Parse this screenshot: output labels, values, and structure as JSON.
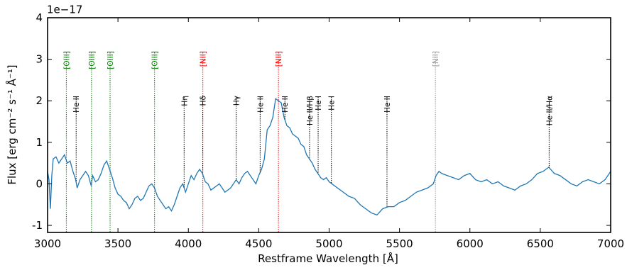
{
  "chart_data": {
    "type": "line",
    "offset_label": "1e−17",
    "xlabel": "Restframe Wavelength [Å]",
    "ylabel": "Flux [erg cm⁻² s⁻¹ Å⁻¹]",
    "xlim": [
      3000,
      7000
    ],
    "ylim": [
      -1.17,
      4
    ],
    "xticks": [
      3000,
      3500,
      4000,
      4500,
      5000,
      5500,
      6000,
      6500,
      7000
    ],
    "yticks": [
      -1,
      0,
      1,
      2,
      3,
      4
    ],
    "color": "#1f77b4",
    "x": [
      3000,
      3010,
      3020,
      3030,
      3040,
      3060,
      3080,
      3100,
      3120,
      3140,
      3160,
      3180,
      3200,
      3210,
      3230,
      3250,
      3270,
      3290,
      3310,
      3320,
      3340,
      3360,
      3380,
      3400,
      3420,
      3440,
      3460,
      3480,
      3500,
      3520,
      3540,
      3560,
      3580,
      3600,
      3620,
      3640,
      3660,
      3680,
      3700,
      3720,
      3740,
      3760,
      3780,
      3800,
      3820,
      3840,
      3860,
      3880,
      3900,
      3920,
      3940,
      3960,
      3980,
      4000,
      4020,
      4040,
      4060,
      4080,
      4100,
      4120,
      4140,
      4160,
      4180,
      4200,
      4220,
      4240,
      4260,
      4280,
      4300,
      4320,
      4340,
      4360,
      4380,
      4400,
      4420,
      4440,
      4460,
      4480,
      4500,
      4520,
      4540,
      4560,
      4580,
      4600,
      4620,
      4640,
      4660,
      4680,
      4700,
      4720,
      4740,
      4760,
      4780,
      4800,
      4820,
      4840,
      4860,
      4880,
      4900,
      4920,
      4940,
      4960,
      4980,
      5000,
      5020,
      5040,
      5060,
      5080,
      5100,
      5140,
      5180,
      5220,
      5260,
      5300,
      5340,
      5380,
      5420,
      5460,
      5500,
      5540,
      5580,
      5620,
      5660,
      5700,
      5740,
      5760,
      5780,
      5800,
      5840,
      5880,
      5920,
      5960,
      6000,
      6040,
      6080,
      6120,
      6160,
      6200,
      6240,
      6280,
      6320,
      6360,
      6400,
      6440,
      6480,
      6520,
      6560,
      6600,
      6640,
      6680,
      6720,
      6760,
      6800,
      6840,
      6880,
      6920,
      6960,
      7000
    ],
    "values": [
      0.3,
      0.1,
      -0.6,
      0.2,
      0.6,
      0.65,
      0.5,
      0.6,
      0.7,
      0.5,
      0.55,
      0.3,
      0.1,
      -0.1,
      0.1,
      0.2,
      0.3,
      0.2,
      -0.05,
      0.2,
      0.05,
      0.1,
      0.25,
      0.45,
      0.55,
      0.35,
      0.15,
      -0.1,
      -0.25,
      -0.3,
      -0.4,
      -0.45,
      -0.6,
      -0.5,
      -0.35,
      -0.3,
      -0.4,
      -0.35,
      -0.2,
      -0.05,
      0.0,
      -0.1,
      -0.3,
      -0.4,
      -0.5,
      -0.6,
      -0.55,
      -0.65,
      -0.5,
      -0.3,
      -0.1,
      0.0,
      -0.2,
      0.0,
      0.2,
      0.1,
      0.25,
      0.35,
      0.25,
      0.05,
      0.0,
      -0.15,
      -0.1,
      -0.05,
      0.0,
      -0.1,
      -0.2,
      -0.15,
      -0.1,
      0.0,
      0.1,
      0.0,
      0.15,
      0.25,
      0.3,
      0.2,
      0.1,
      0.0,
      0.2,
      0.35,
      0.6,
      1.3,
      1.4,
      1.6,
      2.05,
      2.0,
      1.95,
      1.6,
      1.4,
      1.35,
      1.2,
      1.15,
      1.1,
      0.95,
      0.9,
      0.7,
      0.6,
      0.5,
      0.35,
      0.25,
      0.15,
      0.1,
      0.15,
      0.05,
      0.0,
      -0.05,
      -0.1,
      -0.15,
      -0.2,
      -0.3,
      -0.35,
      -0.5,
      -0.6,
      -0.7,
      -0.75,
      -0.6,
      -0.55,
      -0.55,
      -0.45,
      -0.4,
      -0.3,
      -0.2,
      -0.15,
      -0.1,
      0.0,
      0.2,
      0.3,
      0.25,
      0.2,
      0.15,
      0.1,
      0.2,
      0.25,
      0.1,
      0.05,
      0.1,
      0.0,
      0.05,
      -0.05,
      -0.1,
      -0.15,
      -0.05,
      0.0,
      0.1,
      0.25,
      0.3,
      0.4,
      0.25,
      0.2,
      0.1,
      0.0,
      -0.05,
      0.05,
      0.1,
      0.05,
      0.0,
      0.1,
      0.3
    ],
    "band_lines": [
      {
        "label": "[OIII]",
        "x": 3133,
        "color": "#008000"
      },
      {
        "label": "[OIII]",
        "x": 3312,
        "color": "#008000"
      },
      {
        "label": "[OIII]",
        "x": 3444,
        "color": "#008000"
      },
      {
        "label": "[OIII]",
        "x": 3760,
        "color": "#008000"
      },
      {
        "label": "[NII]",
        "x": 4103,
        "color": "#ff0000"
      },
      {
        "label": "[NII]",
        "x": 4640,
        "color": "#ff0000"
      },
      {
        "label": "[NII]",
        "x": 5755,
        "color": "#999999"
      }
    ],
    "line_markers": [
      {
        "label": "He II",
        "x": 3203,
        "color": "#000000"
      },
      {
        "label": "Hη",
        "x": 3970,
        "color": "#000000"
      },
      {
        "label": "Hδ",
        "x": 4102,
        "color": "#000000"
      },
      {
        "label": "Hγ",
        "x": 4340,
        "color": "#000000"
      },
      {
        "label": "He II",
        "x": 4510,
        "color": "#000000"
      },
      {
        "label": "He II",
        "x": 4686,
        "color": "#000000"
      },
      {
        "label": "He II/Hβ",
        "x": 4861,
        "color": "#000000"
      },
      {
        "label": "He I",
        "x": 4922,
        "color": "#000000"
      },
      {
        "label": "He I",
        "x": 5016,
        "color": "#000000"
      },
      {
        "label": "He II",
        "x": 5411,
        "color": "#000000"
      },
      {
        "label": "He II/Hα",
        "x": 6563,
        "color": "#000000"
      }
    ]
  }
}
